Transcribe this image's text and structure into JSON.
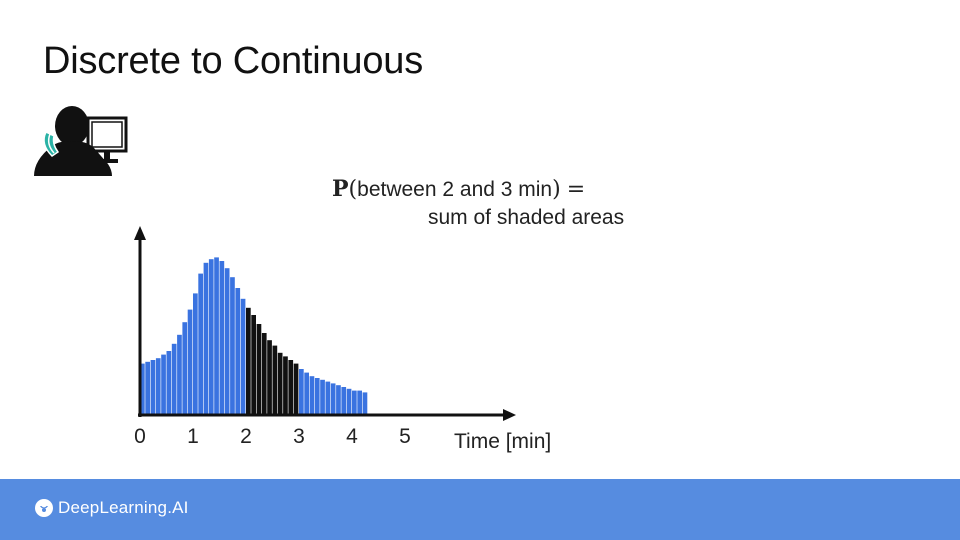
{
  "slide": {
    "title": "Discrete to Continuous"
  },
  "formula": {
    "symbol": "P",
    "open": "(",
    "text": "between 2 and 3 min",
    "close": ")",
    "equals": "=",
    "line2": "sum of shaded areas"
  },
  "icons": {
    "person": "person-on-phone-at-computer-icon",
    "logo": "deeplearning-logo-icon"
  },
  "footer": {
    "brand": "DeepLearning.AI"
  },
  "colors": {
    "bar": "#3a73e0",
    "shaded": "#111111",
    "footer": "#568ce0",
    "axis": "#111111"
  },
  "chart_data": {
    "type": "bar",
    "xlabel": "Time [min]",
    "ylabel": "",
    "xlim": [
      0,
      5
    ],
    "ylim": [
      0,
      1
    ],
    "xticks": [
      "0",
      "1",
      "2",
      "3",
      "4",
      "5"
    ],
    "bin_width": 0.1,
    "values": [
      0.28,
      0.29,
      0.3,
      0.31,
      0.33,
      0.35,
      0.39,
      0.44,
      0.51,
      0.58,
      0.67,
      0.78,
      0.84,
      0.86,
      0.87,
      0.85,
      0.81,
      0.76,
      0.7,
      0.64,
      0.59,
      0.55,
      0.5,
      0.45,
      0.41,
      0.38,
      0.34,
      0.32,
      0.3,
      0.28,
      0.25,
      0.23,
      0.21,
      0.2,
      0.19,
      0.18,
      0.17,
      0.16,
      0.15,
      0.14,
      0.13,
      0.13,
      0.12
    ],
    "shaded_range": [
      2,
      3
    ]
  }
}
